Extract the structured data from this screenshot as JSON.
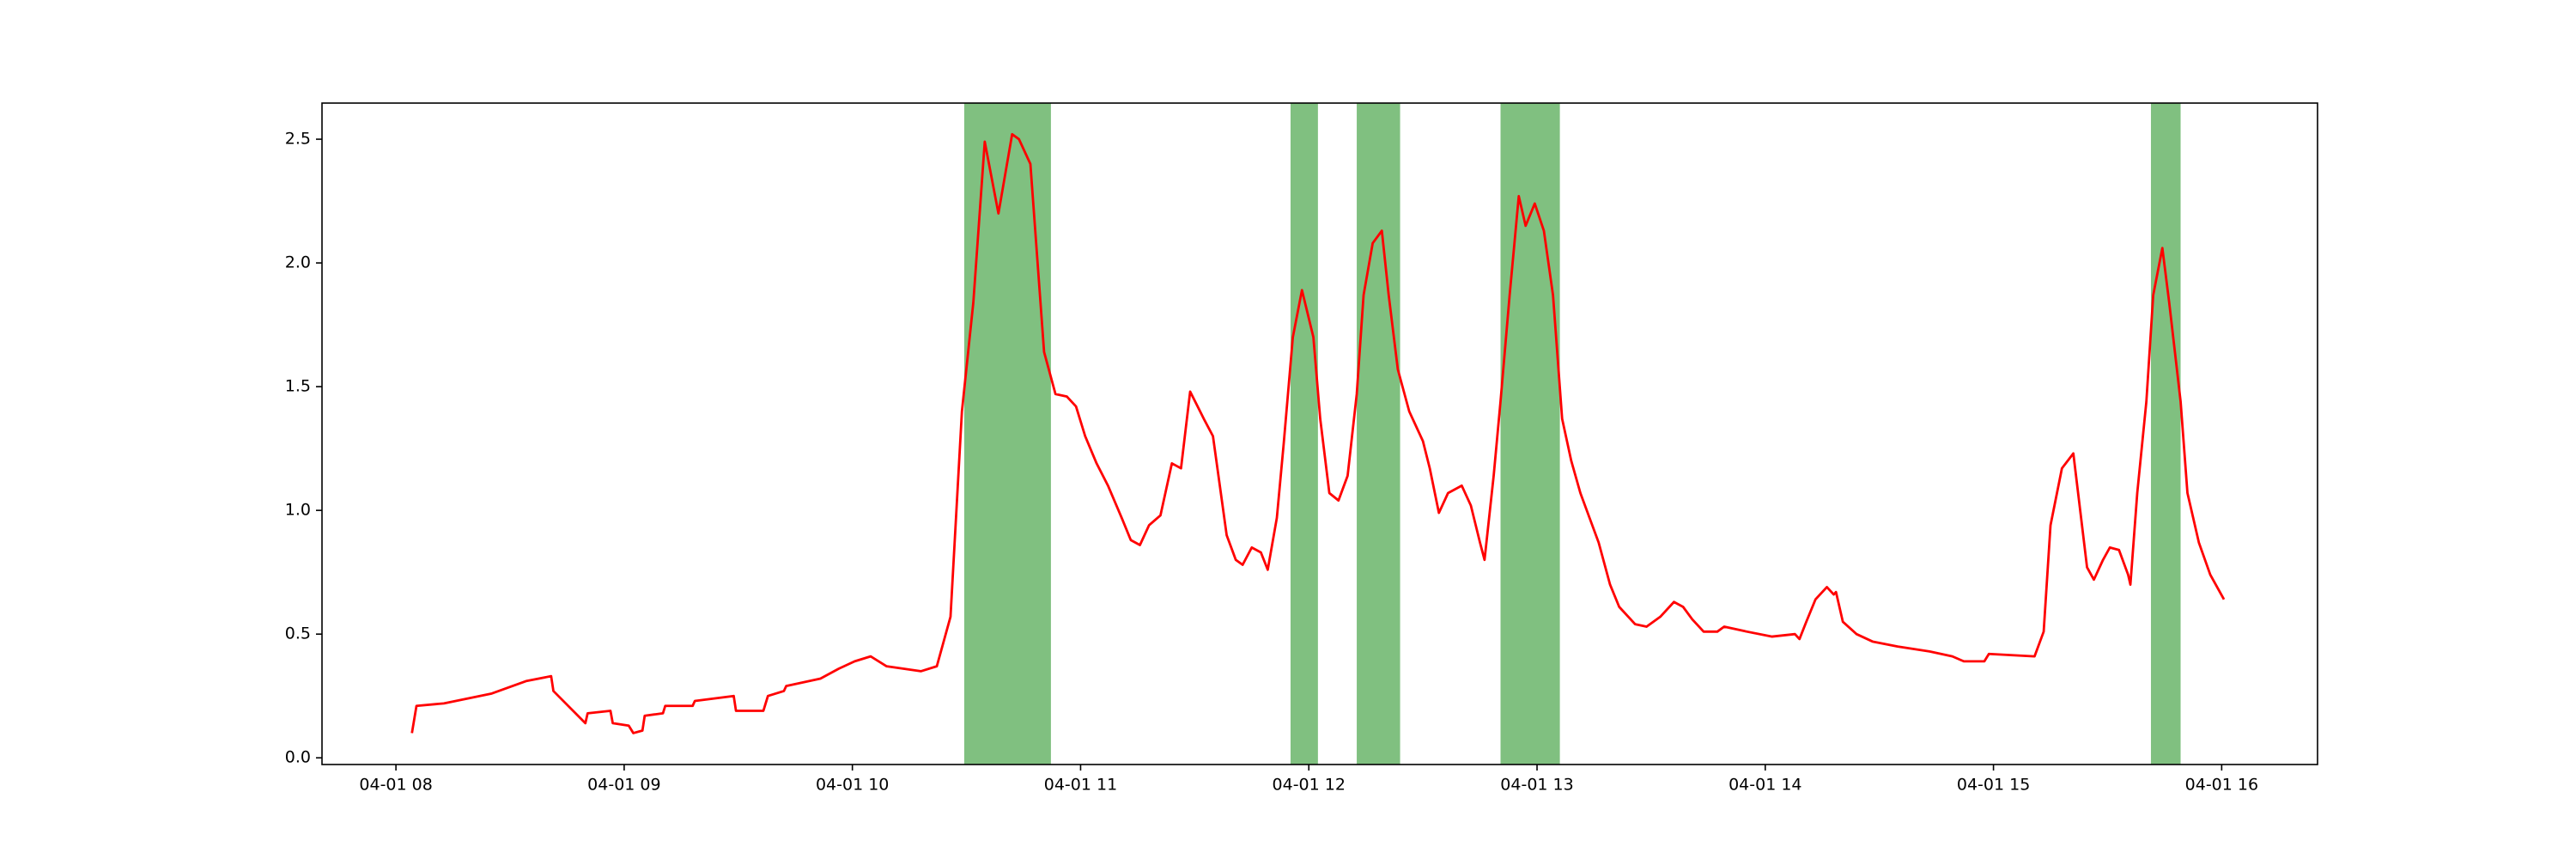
{
  "chart_data": {
    "type": "line",
    "x": [
      8.07,
      8.09,
      8.21,
      8.42,
      8.57,
      8.68,
      8.69,
      8.83,
      8.84,
      8.94,
      8.95,
      9.02,
      9.04,
      9.08,
      9.09,
      9.17,
      9.18,
      9.3,
      9.31,
      9.48,
      9.49,
      9.61,
      9.63,
      9.7,
      9.71,
      9.86,
      9.94,
      10.01,
      10.08,
      10.15,
      10.3,
      10.37,
      10.43,
      10.48,
      10.53,
      10.58,
      10.64,
      10.7,
      10.73,
      10.78,
      10.84,
      10.89,
      10.94,
      10.98,
      11.02,
      11.07,
      11.12,
      11.18,
      11.22,
      11.26,
      11.3,
      11.35,
      11.4,
      11.44,
      11.48,
      11.54,
      11.58,
      11.61,
      11.64,
      11.68,
      11.71,
      11.75,
      11.79,
      11.82,
      11.86,
      11.89,
      11.93,
      11.97,
      12.02,
      12.05,
      12.09,
      12.13,
      12.17,
      12.21,
      12.24,
      12.28,
      12.32,
      12.35,
      12.39,
      12.44,
      12.5,
      12.53,
      12.57,
      12.61,
      12.67,
      12.71,
      12.75,
      12.77,
      12.81,
      12.84,
      12.88,
      12.92,
      12.95,
      12.99,
      13.03,
      13.07,
      13.11,
      13.15,
      13.19,
      13.23,
      13.27,
      13.32,
      13.36,
      13.43,
      13.48,
      13.54,
      13.6,
      13.64,
      13.68,
      13.73,
      13.79,
      13.82,
      13.92,
      14.03,
      14.13,
      14.15,
      14.18,
      14.22,
      14.27,
      14.3,
      14.31,
      14.34,
      14.4,
      14.47,
      14.58,
      14.72,
      14.82,
      14.87,
      14.96,
      14.98,
      15.18,
      15.22,
      15.25,
      15.3,
      15.35,
      15.38,
      15.41,
      15.44,
      15.48,
      15.51,
      15.55,
      15.59,
      15.6,
      15.63,
      15.67,
      15.7,
      15.74,
      15.77,
      15.8,
      15.82,
      15.85,
      15.9,
      15.95,
      16.01
    ],
    "series": [
      {
        "color": "#ff0000",
        "values": [
          0.1,
          0.21,
          0.22,
          0.26,
          0.31,
          0.33,
          0.27,
          0.14,
          0.18,
          0.19,
          0.14,
          0.13,
          0.1,
          0.11,
          0.17,
          0.18,
          0.21,
          0.21,
          0.23,
          0.25,
          0.19,
          0.19,
          0.25,
          0.27,
          0.29,
          0.32,
          0.36,
          0.39,
          0.41,
          0.37,
          0.35,
          0.37,
          0.57,
          1.4,
          1.84,
          2.49,
          2.2,
          2.52,
          2.5,
          2.4,
          1.64,
          1.47,
          1.46,
          1.42,
          1.3,
          1.19,
          1.1,
          0.97,
          0.88,
          0.86,
          0.94,
          0.98,
          1.19,
          1.17,
          1.48,
          1.37,
          1.3,
          1.1,
          0.9,
          0.8,
          0.78,
          0.85,
          0.83,
          0.76,
          0.97,
          1.27,
          1.7,
          1.89,
          1.7,
          1.37,
          1.07,
          1.04,
          1.14,
          1.47,
          1.87,
          2.08,
          2.13,
          1.87,
          1.57,
          1.4,
          1.28,
          1.17,
          0.99,
          1.07,
          1.1,
          1.02,
          0.87,
          0.8,
          1.14,
          1.44,
          1.87,
          2.27,
          2.15,
          2.24,
          2.13,
          1.87,
          1.37,
          1.2,
          1.07,
          0.97,
          0.87,
          0.7,
          0.61,
          0.54,
          0.53,
          0.57,
          0.63,
          0.61,
          0.56,
          0.51,
          0.51,
          0.53,
          0.51,
          0.49,
          0.5,
          0.48,
          0.55,
          0.64,
          0.69,
          0.66,
          0.67,
          0.55,
          0.5,
          0.47,
          0.45,
          0.43,
          0.41,
          0.39,
          0.39,
          0.42,
          0.41,
          0.51,
          0.94,
          1.17,
          1.23,
          1.0,
          0.77,
          0.72,
          0.8,
          0.85,
          0.84,
          0.74,
          0.7,
          1.07,
          1.44,
          1.87,
          2.06,
          1.84,
          1.6,
          1.44,
          1.07,
          0.87,
          0.74,
          0.64
        ]
      }
    ],
    "spans": [
      [
        10.49,
        10.87
      ],
      [
        11.92,
        12.04
      ],
      [
        12.21,
        12.4
      ],
      [
        12.84,
        13.1
      ],
      [
        15.69,
        15.82
      ]
    ],
    "span_color": "#80c080",
    "xlim": [
      7.676,
      16.42
    ],
    "ylim": [
      -0.027,
      2.646
    ],
    "xticks": [
      {
        "value": 8,
        "label": "04-01 08"
      },
      {
        "value": 9,
        "label": "04-01 09"
      },
      {
        "value": 10,
        "label": "04-01 10"
      },
      {
        "value": 11,
        "label": "04-01 11"
      },
      {
        "value": 12,
        "label": "04-01 12"
      },
      {
        "value": 13,
        "label": "04-01 13"
      },
      {
        "value": 14,
        "label": "04-01 14"
      },
      {
        "value": 15,
        "label": "04-01 15"
      },
      {
        "value": 16,
        "label": "04-01 16"
      }
    ],
    "yticks": [
      {
        "value": 0,
        "label": "0.0"
      },
      0.5,
      {
        "value": 1,
        "label": "1.0"
      },
      1.5,
      {
        "value": 2,
        "label": "2.0"
      },
      2.5
    ],
    "grid": false
  }
}
